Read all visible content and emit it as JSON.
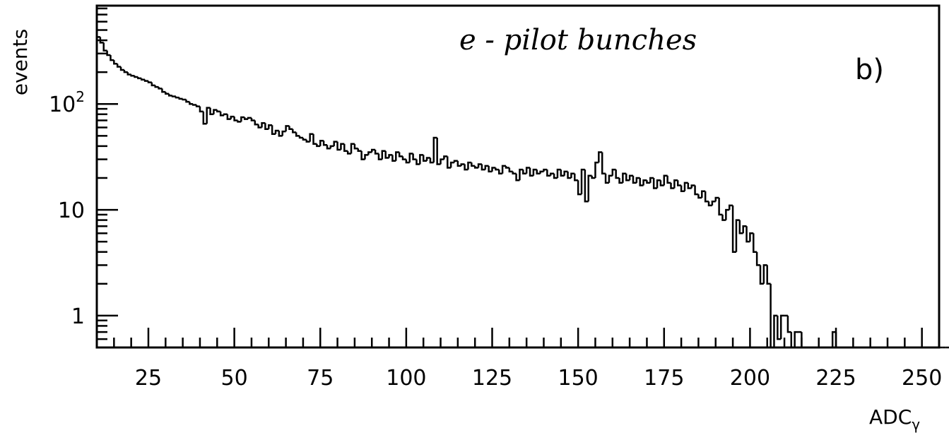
{
  "chart_data": {
    "type": "histogram",
    "annotation": "e - pilot bunches",
    "panel_label": "b)",
    "xlabel": "ADC",
    "xlabel_sub": "γ",
    "ylabel": "events",
    "xlim": [
      10,
      255
    ],
    "ylim": [
      0.5,
      850
    ],
    "yscale": "log",
    "x_ticks": [
      25,
      50,
      75,
      100,
      125,
      150,
      175,
      200,
      225,
      250
    ],
    "y_ticks": [
      {
        "value": 1,
        "base": "1",
        "exp": ""
      },
      {
        "value": 10,
        "base": "10",
        "exp": ""
      },
      {
        "value": 100,
        "base": "10",
        "exp": "2"
      }
    ],
    "bin_width": 1,
    "bins": {
      "x_start": 10,
      "values": [
        430,
        380,
        320,
        290,
        260,
        240,
        225,
        210,
        200,
        190,
        185,
        180,
        175,
        170,
        165,
        160,
        150,
        145,
        140,
        130,
        125,
        120,
        118,
        115,
        112,
        110,
        105,
        100,
        98,
        95,
        85,
        65,
        92,
        80,
        88,
        85,
        78,
        80,
        72,
        76,
        70,
        68,
        75,
        72,
        74,
        70,
        64,
        60,
        66,
        58,
        63,
        52,
        56,
        50,
        55,
        62,
        58,
        54,
        50,
        48,
        46,
        44,
        52,
        42,
        40,
        45,
        41,
        38,
        40,
        44,
        37,
        42,
        36,
        34,
        42,
        38,
        36,
        30,
        33,
        35,
        37,
        34,
        30,
        36,
        31,
        33,
        29,
        35,
        32,
        30,
        28,
        34,
        30,
        27,
        33,
        29,
        31,
        28,
        48,
        27,
        30,
        32,
        25,
        28,
        29,
        26,
        27,
        24,
        28,
        26,
        25,
        27,
        24,
        26,
        23,
        25,
        24,
        22,
        26,
        25,
        23,
        22,
        19,
        24,
        22,
        25,
        21,
        24,
        22,
        23,
        24,
        21,
        22,
        20,
        24,
        21,
        23,
        20,
        22,
        19,
        14,
        24,
        12,
        21,
        20,
        28,
        35,
        22,
        18,
        21,
        24,
        20,
        18,
        22,
        19,
        21,
        18,
        20,
        17,
        19,
        18,
        20,
        16,
        19,
        17,
        21,
        18,
        16,
        19,
        17,
        15,
        18,
        16,
        17,
        14,
        13,
        15,
        12,
        11,
        12,
        13,
        9,
        8,
        10,
        11,
        4,
        8,
        6,
        7,
        5,
        6,
        4,
        3,
        2,
        3,
        2,
        0.5,
        1,
        0.6,
        1,
        1,
        0.7,
        0.5,
        0.7,
        0.7,
        0,
        0,
        0,
        0,
        0,
        0,
        0,
        0,
        0,
        0.7,
        0,
        0,
        0,
        0,
        0,
        0,
        0,
        0,
        0,
        0,
        0,
        0,
        0,
        0,
        0,
        0,
        0,
        0,
        0,
        0,
        0,
        0,
        0,
        0,
        0,
        0,
        0,
        0,
        0,
        0,
        0,
        0,
        0,
        0,
        0,
        0,
        0,
        0,
        0,
        0,
        0
      ]
    }
  }
}
